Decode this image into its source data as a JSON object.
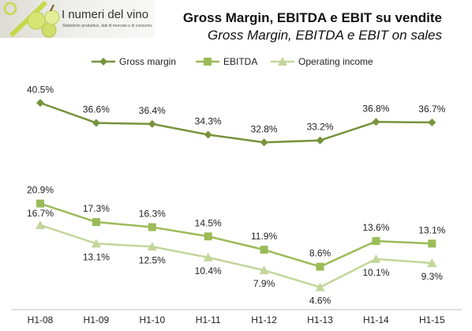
{
  "logo": {
    "title": "I numeri del vino",
    "subtitle": "Statistiche produttive, dati di mercato e di consumo."
  },
  "title": "Gross Margin, EBITDA e EBIT su vendite",
  "subtitle": "Gross Margin, EBITDA e EBIT on sales",
  "colors": {
    "gross_margin": "#77933c",
    "ebitda": "#9bbb59",
    "operating_income": "#c3d69b"
  },
  "chart_data": {
    "type": "line",
    "categories": [
      "H1-08",
      "H1-09",
      "H1-10",
      "H1-11",
      "H1-12",
      "H1-13",
      "H1-14",
      "H1-15"
    ],
    "series": [
      {
        "name": "Gross margin",
        "marker": "diamond",
        "color": "#77933c",
        "values": [
          40.5,
          36.6,
          36.4,
          34.3,
          32.8,
          33.2,
          36.8,
          36.7
        ],
        "labels": [
          "40.5%",
          "36.6%",
          "36.4%",
          "34.3%",
          "32.8%",
          "33.2%",
          "36.8%",
          "36.7%"
        ]
      },
      {
        "name": "EBITDA",
        "marker": "square",
        "color": "#9bbb59",
        "values": [
          20.9,
          17.3,
          16.3,
          14.5,
          11.9,
          8.6,
          13.6,
          13.1
        ],
        "labels": [
          "20.9%",
          "17.3%",
          "16.3%",
          "14.5%",
          "11.9%",
          "8.6%",
          "13.6%",
          "13.1%"
        ]
      },
      {
        "name": "Operating income",
        "marker": "triangle",
        "color": "#c3d69b",
        "values": [
          16.7,
          13.1,
          12.5,
          10.4,
          7.9,
          4.6,
          10.1,
          9.3
        ],
        "labels": [
          "16.7%",
          "13.1%",
          "12.5%",
          "10.4%",
          "7.9%",
          "4.6%",
          "10.1%",
          "9.3%"
        ]
      }
    ],
    "legend_position": "top",
    "grid": false,
    "axis_unit": "%"
  }
}
